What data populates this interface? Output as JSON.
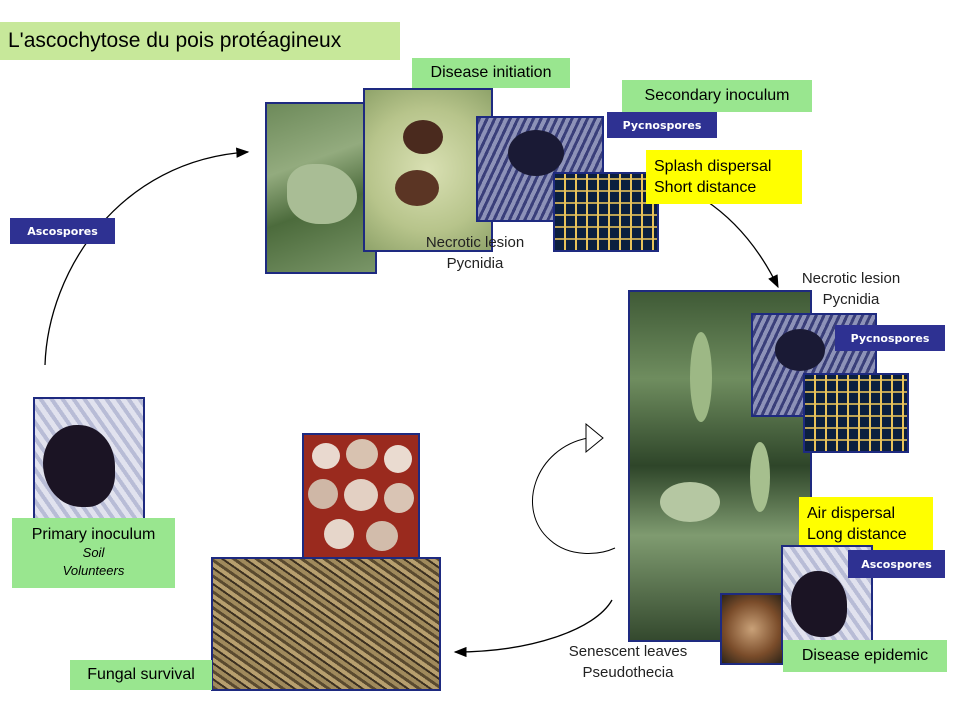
{
  "title": "L'ascochytose du pois protéagineux",
  "labels": {
    "disease_initiation": "Disease initiation",
    "secondary_inoculum": "Secondary inoculum",
    "primary_inoculum": "Primary inoculum",
    "primary_soil": "Soil",
    "primary_volunteers": "Volunteers",
    "fungal_survival": "Fungal survival",
    "disease_epidemic": "Disease epidemic"
  },
  "tags": {
    "ascospores_left": "Ascospores",
    "pycnospores_top": "Pycnospores",
    "pycnospores_right": "Pycnospores",
    "ascospores_right": "Ascospores"
  },
  "callouts": {
    "splash_line1": "Splash dispersal",
    "splash_line2": "Short distance",
    "air_line1": "Air dispersal",
    "air_line2": "Long distance"
  },
  "captions": {
    "lesion_top_1": "Necrotic lesion",
    "lesion_top_2": "Pycnidia",
    "lesion_right_1": "Necrotic lesion",
    "lesion_right_2": "Pycnidia",
    "senescent_1": "Senescent leaves",
    "senescent_2": "Pseudothecia"
  },
  "colors": {
    "green_label": "#99e68f",
    "title_bg": "#c7e89a",
    "tag_blue": "#2e3192",
    "callout_yellow": "#ffff00"
  }
}
